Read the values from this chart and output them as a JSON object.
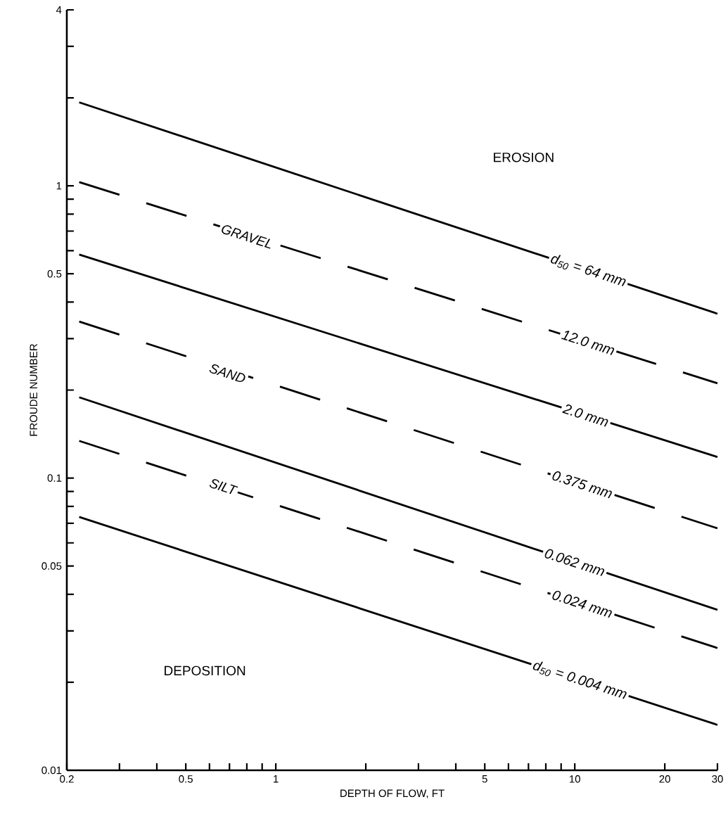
{
  "chart_data": {
    "type": "line",
    "xlabel": "DEPTH OF FLOW, FT",
    "ylabel": "FROUDE NUMBER",
    "log": "xy",
    "x": [
      0.22,
      30
    ],
    "series": [
      {
        "color": "#000000",
        "line_style": "solid",
        "values": [
          1.93,
          0.365
        ]
      },
      {
        "color": "#000000",
        "line_style": "dashed",
        "values": [
          1.03,
          0.211
        ]
      },
      {
        "color": "#000000",
        "line_style": "solid",
        "values": [
          0.582,
          0.118
        ]
      },
      {
        "color": "#000000",
        "line_style": "dashed",
        "values": [
          0.343,
          0.0673
        ]
      },
      {
        "color": "#000000",
        "line_style": "solid",
        "values": [
          0.189,
          0.0354
        ]
      },
      {
        "color": "#000000",
        "line_style": "dashed",
        "values": [
          0.134,
          0.0262
        ]
      },
      {
        "color": "#000000",
        "line_style": "solid",
        "values": [
          0.0736,
          0.0143
        ]
      }
    ],
    "xlim": [
      0.2,
      30
    ],
    "ylim": [
      0.01,
      4
    ],
    "xticks": [
      0.2,
      {
        "value": 0.3,
        "label": null
      },
      {
        "value": 0.4,
        "label": null
      },
      0.5,
      {
        "value": 0.6,
        "label": null
      },
      {
        "value": 0.7,
        "label": null
      },
      {
        "value": 0.8,
        "label": null
      },
      {
        "value": 0.9,
        "label": null
      },
      1,
      {
        "value": 2,
        "label": null
      },
      {
        "value": 3,
        "label": null
      },
      {
        "value": 4,
        "label": null
      },
      5,
      {
        "value": 6,
        "label": null
      },
      {
        "value": 7,
        "label": null
      },
      {
        "value": 8,
        "label": null
      },
      {
        "value": 9,
        "label": null
      },
      10,
      20,
      30
    ],
    "yticks": [
      0.01,
      {
        "value": 0.02,
        "label": null
      },
      {
        "value": 0.03,
        "label": null
      },
      {
        "value": 0.04,
        "label": null
      },
      0.05,
      {
        "value": 0.06,
        "label": null
      },
      {
        "value": 0.07,
        "label": null
      },
      {
        "value": 0.08,
        "label": null
      },
      {
        "value": 0.09,
        "label": null
      },
      0.1,
      {
        "value": 0.2,
        "label": null
      },
      {
        "value": 0.3,
        "label": null
      },
      {
        "value": 0.4,
        "label": null
      },
      0.5,
      {
        "value": 0.6,
        "label": null
      },
      {
        "value": 0.7,
        "label": null
      },
      {
        "value": 0.8,
        "label": null
      },
      {
        "value": 0.9,
        "label": null
      },
      1,
      {
        "value": 2,
        "label": null
      },
      {
        "value": 3,
        "label": null
      },
      4
    ],
    "annotations": [
      "EROSION",
      "GRAVEL",
      "SAND",
      "SILT",
      "DEPOSITION",
      {
        "text": "d$_{50}$ = 64 mm",
        "x": 11.1,
        "y": 0.512
      },
      {
        "text": "12.0 mm",
        "x": 11.1,
        "y": 0.291
      },
      {
        "text": "2.0 mm",
        "x": 10.9,
        "y": 0.164
      },
      {
        "text": "0.375 mm",
        "x": 10.6,
        "y": 0.0951
      },
      {
        "text": "0.062 mm",
        "x": 10.0,
        "y": 0.0515
      },
      {
        "text": "0.024 mm",
        "x": 10.6,
        "y": 0.0371
      },
      {
        "text": "d$_{50}$ = 0.004 mm",
        "x": 10.4,
        "y": 0.0203
      }
    ]
  }
}
